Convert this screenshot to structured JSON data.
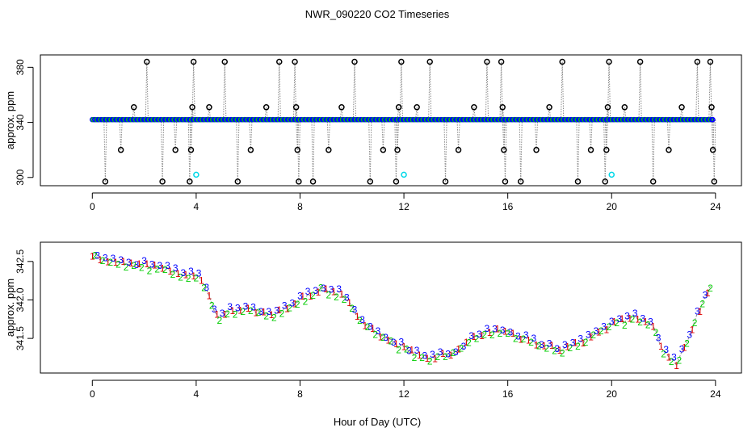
{
  "title": "NWR_090220  CO2 Timeseries",
  "xlabel": "Hour of Day (UTC)",
  "colors": {
    "black": "#000000",
    "blue": "#0000ff",
    "green": "#00cc00",
    "red": "#dd0000",
    "cyan": "#00d8e8",
    "gray": "#888888"
  },
  "chart_data": [
    {
      "type": "scatter",
      "panel": "top",
      "ylabel": "approx. ppm",
      "xlim": [
        -2,
        25
      ],
      "ylim": [
        294,
        389
      ],
      "xticks": [
        0,
        4,
        8,
        12,
        16,
        20,
        24
      ],
      "yticks": [
        300,
        340,
        380
      ],
      "baseline": {
        "value": 342,
        "x_start": 0,
        "x_end": 23.9,
        "step": 0.045,
        "colors": [
          "#0000ff",
          "#00cc00",
          "#0000ff"
        ]
      },
      "spikes": [
        {
          "x": 0.5,
          "y": 297
        },
        {
          "x": 1.1,
          "y": 320
        },
        {
          "x": 1.6,
          "y": 351
        },
        {
          "x": 2.1,
          "y": 384
        },
        {
          "x": 2.7,
          "y": 297
        },
        {
          "x": 3.2,
          "y": 320
        },
        {
          "x": 3.75,
          "y": 297
        },
        {
          "x": 3.8,
          "y": 320
        },
        {
          "x": 3.85,
          "y": 351
        },
        {
          "x": 3.9,
          "y": 384
        },
        {
          "x": 4.5,
          "y": 351
        },
        {
          "x": 5.1,
          "y": 384
        },
        {
          "x": 5.6,
          "y": 297
        },
        {
          "x": 6.1,
          "y": 320
        },
        {
          "x": 6.7,
          "y": 351
        },
        {
          "x": 7.2,
          "y": 384
        },
        {
          "x": 7.8,
          "y": 384
        },
        {
          "x": 7.85,
          "y": 351
        },
        {
          "x": 7.9,
          "y": 320
        },
        {
          "x": 7.95,
          "y": 297
        },
        {
          "x": 8.5,
          "y": 297
        },
        {
          "x": 9.1,
          "y": 320
        },
        {
          "x": 9.6,
          "y": 351
        },
        {
          "x": 10.1,
          "y": 384
        },
        {
          "x": 10.7,
          "y": 297
        },
        {
          "x": 11.2,
          "y": 320
        },
        {
          "x": 11.7,
          "y": 297
        },
        {
          "x": 11.75,
          "y": 320
        },
        {
          "x": 11.8,
          "y": 351
        },
        {
          "x": 11.9,
          "y": 384
        },
        {
          "x": 12.5,
          "y": 351
        },
        {
          "x": 13.0,
          "y": 384
        },
        {
          "x": 13.6,
          "y": 297
        },
        {
          "x": 14.1,
          "y": 320
        },
        {
          "x": 14.7,
          "y": 351
        },
        {
          "x": 15.2,
          "y": 384
        },
        {
          "x": 15.75,
          "y": 384
        },
        {
          "x": 15.8,
          "y": 351
        },
        {
          "x": 15.85,
          "y": 320
        },
        {
          "x": 15.9,
          "y": 297
        },
        {
          "x": 16.5,
          "y": 297
        },
        {
          "x": 17.1,
          "y": 320
        },
        {
          "x": 17.6,
          "y": 351
        },
        {
          "x": 18.1,
          "y": 384
        },
        {
          "x": 18.7,
          "y": 297
        },
        {
          "x": 19.2,
          "y": 320
        },
        {
          "x": 19.75,
          "y": 297
        },
        {
          "x": 19.8,
          "y": 320
        },
        {
          "x": 19.85,
          "y": 351
        },
        {
          "x": 19.9,
          "y": 384
        },
        {
          "x": 20.5,
          "y": 351
        },
        {
          "x": 21.1,
          "y": 384
        },
        {
          "x": 21.6,
          "y": 297
        },
        {
          "x": 22.2,
          "y": 320
        },
        {
          "x": 22.7,
          "y": 351
        },
        {
          "x": 23.3,
          "y": 384
        },
        {
          "x": 23.8,
          "y": 384
        },
        {
          "x": 23.85,
          "y": 351
        },
        {
          "x": 23.9,
          "y": 320
        },
        {
          "x": 23.95,
          "y": 297
        }
      ],
      "cyan_points": [
        {
          "x": 4.0,
          "y": 302
        },
        {
          "x": 12.0,
          "y": 302
        },
        {
          "x": 20.0,
          "y": 302
        }
      ]
    },
    {
      "type": "scatter",
      "panel": "bottom",
      "ylabel": "approx. ppm",
      "xlim": [
        -2,
        25
      ],
      "ylim": [
        341.05,
        342.75
      ],
      "xticks": [
        0,
        4,
        8,
        12,
        16,
        20,
        24
      ],
      "yticks": [
        341.5,
        342.0,
        342.5
      ],
      "series_labels": [
        "1",
        "2",
        "3"
      ],
      "series_colors": [
        "#dd0000",
        "#00cc00",
        "#0000ff"
      ],
      "step": 0.1,
      "anchors": [
        {
          "x": 0.0,
          "y": 342.6
        },
        {
          "x": 0.4,
          "y": 342.52
        },
        {
          "x": 1.0,
          "y": 342.48
        },
        {
          "x": 2.0,
          "y": 342.45
        },
        {
          "x": 3.0,
          "y": 342.38
        },
        {
          "x": 3.7,
          "y": 342.32
        },
        {
          "x": 4.2,
          "y": 342.28
        },
        {
          "x": 4.5,
          "y": 342.05
        },
        {
          "x": 4.8,
          "y": 341.78
        },
        {
          "x": 5.3,
          "y": 341.85
        },
        {
          "x": 6.0,
          "y": 341.9
        },
        {
          "x": 6.5,
          "y": 341.82
        },
        {
          "x": 7.0,
          "y": 341.8
        },
        {
          "x": 7.5,
          "y": 341.9
        },
        {
          "x": 8.0,
          "y": 342.0
        },
        {
          "x": 8.8,
          "y": 342.15
        },
        {
          "x": 9.5,
          "y": 342.08
        },
        {
          "x": 10.0,
          "y": 341.9
        },
        {
          "x": 10.5,
          "y": 341.7
        },
        {
          "x": 11.0,
          "y": 341.55
        },
        {
          "x": 12.0,
          "y": 341.38
        },
        {
          "x": 12.5,
          "y": 341.28
        },
        {
          "x": 13.0,
          "y": 341.25
        },
        {
          "x": 14.0,
          "y": 341.32
        },
        {
          "x": 14.5,
          "y": 341.45
        },
        {
          "x": 15.0,
          "y": 341.55
        },
        {
          "x": 15.5,
          "y": 341.6
        },
        {
          "x": 16.0,
          "y": 341.58
        },
        {
          "x": 16.5,
          "y": 341.5
        },
        {
          "x": 17.2,
          "y": 341.42
        },
        {
          "x": 18.0,
          "y": 341.35
        },
        {
          "x": 18.8,
          "y": 341.45
        },
        {
          "x": 19.5,
          "y": 341.6
        },
        {
          "x": 20.2,
          "y": 341.7
        },
        {
          "x": 21.0,
          "y": 341.78
        },
        {
          "x": 21.5,
          "y": 341.72
        },
        {
          "x": 22.0,
          "y": 341.35
        },
        {
          "x": 22.5,
          "y": 341.15
        },
        {
          "x": 23.0,
          "y": 341.55
        },
        {
          "x": 23.5,
          "y": 341.95
        },
        {
          "x": 23.8,
          "y": 342.2
        }
      ]
    }
  ]
}
